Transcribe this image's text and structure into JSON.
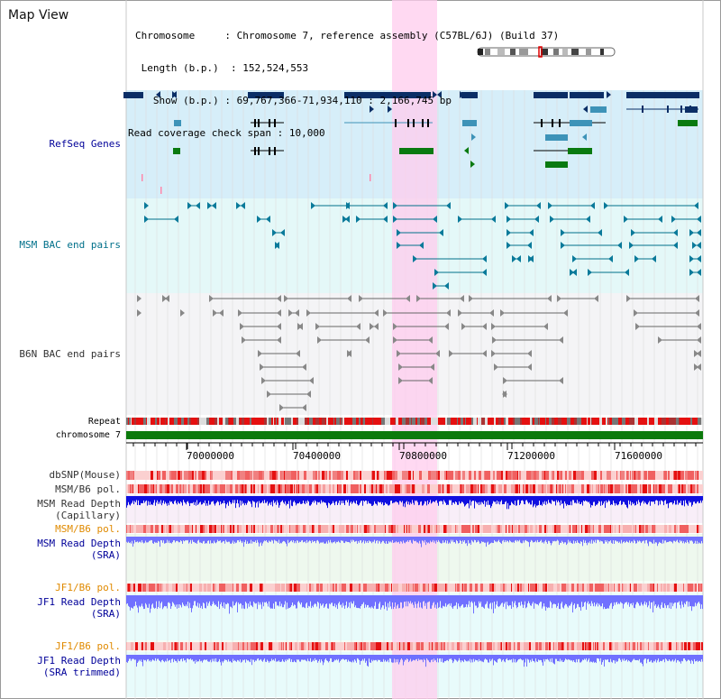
{
  "view": {
    "title": "Map View",
    "chromosome_label": "Chromosome",
    "chromosome_value": "Chromosome 7, reference assembly (C57BL/6J) (Build 37)",
    "length_label": "Length (b.p.)",
    "length_value": "152,524,553",
    "show_label": "Show (b.p.)",
    "show_value": "69,767,366-71,934,110 : 2,166,745 bp",
    "coverage_label": "Read coverage check span",
    "coverage_value": "10,000"
  },
  "tracks": {
    "refseq": "RefSeq Genes",
    "msm_bac": "MSM BAC end pairs",
    "b6n_bac": "B6N BAC end pairs",
    "repeat": "Repeat",
    "chromosome": "chromosome 7",
    "dbsnp": "dbSNP(Mouse)",
    "msm_b6_pol_1": "MSM/B6 pol.",
    "msm_read_depth_cap_1": "MSM Read Depth",
    "msm_read_depth_cap_2": "(Capillary)",
    "msm_b6_pol_2": "MSM/B6 pol.",
    "msm_read_depth_sra_1": "MSM Read Depth",
    "msm_read_depth_sra_2": "(SRA)",
    "jf1_b6_pol_1": "JF1/B6 pol.",
    "jf1_read_depth_1": "JF1 Read Depth",
    "jf1_read_depth_2": "(SRA)",
    "jf1_b6_pol_2": "JF1/B6 pol.",
    "jf1_read_depth_trim_1": "JF1 Read Depth",
    "jf1_read_depth_trim_2": "(SRA trimmed)"
  },
  "ruler": {
    "labels": [
      "70000000",
      "70400000",
      "70800000",
      "71200000",
      "71600000"
    ]
  },
  "colors": {
    "refseq_bg": "#d6eef9",
    "msm_bg": "#e4f8f8",
    "gene_navy": "#0b2e66",
    "gene_teal": "#3d93b8",
    "gene_green": "#097a10",
    "highlight": "#ffccee",
    "repeat_red": "#e51010",
    "chrom_green": "#0c7a0c",
    "depth_blue": "#1010e0",
    "depth_light": "#7070ff",
    "label_navy": "#000099",
    "label_teal": "#00708a",
    "label_orange": "#e08a00"
  }
}
